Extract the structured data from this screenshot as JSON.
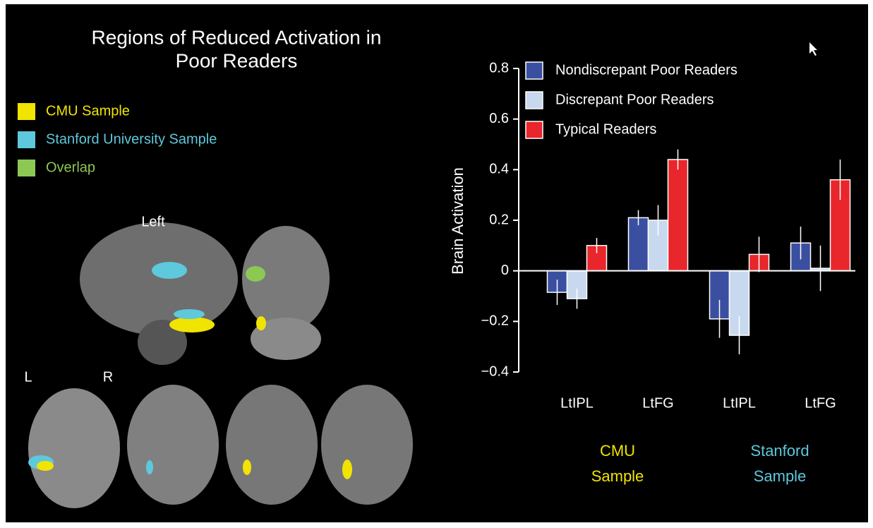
{
  "panel": {
    "title_lines": [
      "Regions of Reduced Activation in",
      "Poor Readers"
    ],
    "legend": [
      {
        "label": "CMU Sample",
        "color": "#f0e400"
      },
      {
        "label": "Stanford University Sample",
        "color": "#5ec8dc"
      },
      {
        "label": "Overlap",
        "color": "#8dc855"
      }
    ],
    "view_labels": {
      "left": "Left",
      "l": "L",
      "r": "R"
    }
  },
  "chart_data": {
    "type": "bar",
    "y_label": "Brain Activation",
    "categories": [
      "LtIPL",
      "LtFG",
      "LtIPL",
      "LtFG"
    ],
    "groups": [
      {
        "lines": [
          "CMU",
          "Sample"
        ],
        "color": "#f0e400"
      },
      {
        "lines": [
          "Stanford",
          "Sample"
        ],
        "color": "#5ec8dc"
      }
    ],
    "series": [
      {
        "name": "Nondiscrepant Poor Readers",
        "color": "#3a4fa0",
        "values": [
          -0.085,
          0.21,
          -0.19,
          0.11
        ],
        "errors": [
          0.05,
          0.03,
          0.075,
          0.065
        ]
      },
      {
        "name": "Discrepant Poor Readers",
        "color": "#c8d8ef",
        "values": [
          -0.11,
          0.2,
          -0.255,
          0.01
        ],
        "errors": [
          0.04,
          0.06,
          0.075,
          0.09
        ]
      },
      {
        "name": "Typical Readers",
        "color": "#e8262b",
        "values": [
          0.1,
          0.44,
          0.065,
          0.36
        ],
        "errors": [
          0.03,
          0.04,
          0.07,
          0.08
        ]
      }
    ],
    "ylim": [
      -0.4,
      0.8
    ],
    "yticks": [
      {
        "value": -0.4,
        "label": "−0.4"
      },
      {
        "value": -0.2,
        "label": "−0.2"
      },
      0,
      0.2,
      0.4,
      0.6,
      0.8
    ]
  }
}
